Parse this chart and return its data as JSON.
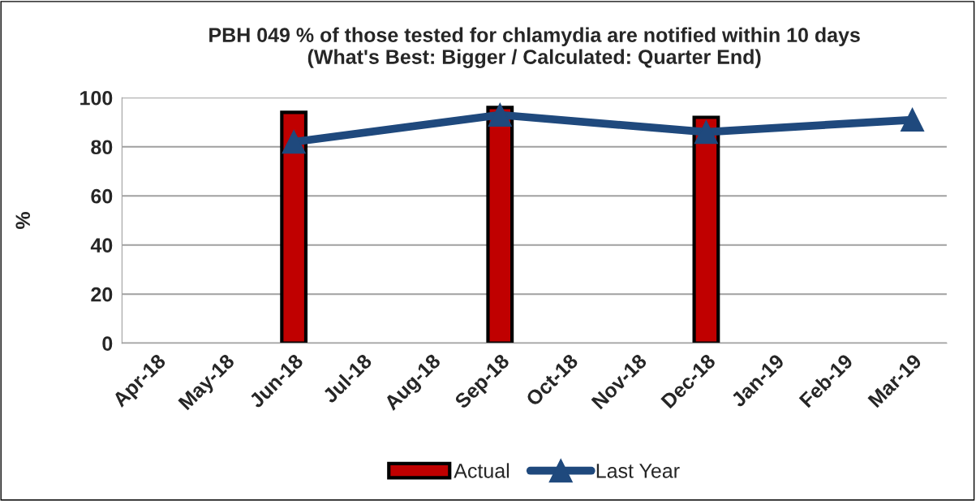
{
  "chart_data": {
    "type": "bar",
    "title": "PBH 049 % of those tested for chlamydia are notified within 10 days\n(What's Best: Bigger / Calculated: Quarter End)",
    "ylabel": "%",
    "categories": [
      "Apr-18",
      "May-18",
      "Jun-18",
      "Jul-18",
      "Aug-18",
      "Sep-18",
      "Oct-18",
      "Nov-18",
      "Dec-18",
      "Jan-19",
      "Feb-19",
      "Mar-19"
    ],
    "series": [
      {
        "name": "Actual",
        "color": "#c00000",
        "values": [
          null,
          null,
          94,
          null,
          null,
          96,
          null,
          null,
          92,
          null,
          null,
          null
        ]
      },
      {
        "name": "Last Year",
        "type": "line",
        "color": "#1f497d",
        "marker": "triangle",
        "values": [
          null,
          null,
          82,
          null,
          null,
          93,
          null,
          null,
          86,
          null,
          null,
          91
        ]
      }
    ],
    "ylim": [
      0,
      100
    ],
    "yticks": [
      0,
      20,
      40,
      60,
      80,
      100
    ],
    "grid": "y",
    "legend": "bottom"
  }
}
